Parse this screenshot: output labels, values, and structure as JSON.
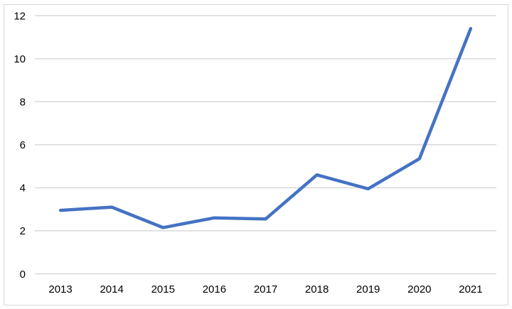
{
  "chart_data": {
    "type": "line",
    "title": "",
    "xlabel": "",
    "ylabel": "",
    "categories": [
      "2013",
      "2014",
      "2015",
      "2016",
      "2017",
      "2018",
      "2019",
      "2020",
      "2021"
    ],
    "values": [
      2.95,
      3.1,
      2.15,
      2.6,
      2.55,
      4.6,
      3.95,
      5.35,
      11.4
    ],
    "ylim": [
      0,
      12
    ],
    "yticks": [
      0,
      2,
      4,
      6,
      8,
      10,
      12
    ],
    "grid": "horizontal",
    "legend": "none",
    "colors": {
      "line": "#4472C4",
      "gridline": "#D9D9D9",
      "frame_border": "#D9D9D9",
      "tick_label": "#000000",
      "background": "#FFFFFF"
    }
  }
}
